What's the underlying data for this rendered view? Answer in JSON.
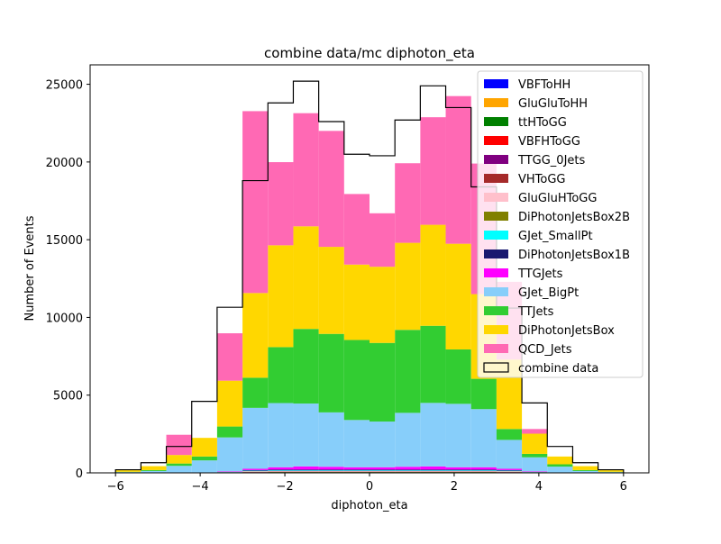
{
  "chart_data": {
    "type": "bar",
    "stacked": true,
    "title": "combine data/mc diphoton_eta",
    "xlabel": "diphoton_eta",
    "ylabel": "Number of Events",
    "xlim": [
      -6.6,
      6.6
    ],
    "ylim": [
      0,
      26250
    ],
    "xticks": [
      -6,
      -4,
      -2,
      0,
      2,
      4,
      6
    ],
    "yticks": [
      0,
      5000,
      10000,
      15000,
      20000,
      25000
    ],
    "grid": false,
    "legend_position": "upper-right",
    "bin_edges": [
      -6.0,
      -5.4,
      -4.8,
      -4.2,
      -3.6,
      -3.0,
      -2.4,
      -1.8,
      -1.2,
      -0.6,
      0.0,
      0.6,
      1.2,
      1.8,
      2.4,
      3.0,
      3.6,
      4.2,
      4.8,
      5.4,
      6.0
    ],
    "series": [
      {
        "name": "VBFToHH",
        "color": "#0000ff",
        "values": [
          0,
          0,
          0,
          0,
          0,
          0,
          0,
          0,
          0,
          0,
          0,
          0,
          0,
          0,
          0,
          0,
          0,
          0,
          0,
          0
        ]
      },
      {
        "name": "GluGluToHH",
        "color": "#ffa500",
        "values": [
          0,
          0,
          0,
          0,
          0,
          0,
          0,
          0,
          0,
          0,
          0,
          0,
          0,
          0,
          0,
          0,
          0,
          0,
          0,
          0
        ]
      },
      {
        "name": "ttHToGG",
        "color": "#008000",
        "values": [
          0,
          0,
          0,
          0,
          20,
          40,
          50,
          50,
          50,
          50,
          50,
          50,
          50,
          50,
          50,
          40,
          20,
          0,
          0,
          0
        ]
      },
      {
        "name": "VBFHToGG",
        "color": "#ff0000",
        "values": [
          0,
          0,
          0,
          0,
          5,
          10,
          10,
          10,
          10,
          10,
          10,
          10,
          10,
          10,
          10,
          10,
          5,
          0,
          0,
          0
        ]
      },
      {
        "name": "TTGG_0Jets",
        "color": "#800080",
        "values": [
          0,
          0,
          0,
          0,
          0,
          10,
          10,
          10,
          10,
          10,
          10,
          10,
          10,
          10,
          10,
          10,
          0,
          0,
          0,
          0
        ]
      },
      {
        "name": "VHToGG",
        "color": "#a52a2a",
        "values": [
          0,
          0,
          0,
          0,
          0,
          10,
          10,
          10,
          10,
          10,
          10,
          10,
          10,
          10,
          10,
          10,
          0,
          0,
          0,
          0
        ]
      },
      {
        "name": "GluGluHToGG",
        "color": "#ffc0cb",
        "values": [
          0,
          0,
          0,
          0,
          10,
          30,
          30,
          30,
          30,
          30,
          30,
          30,
          30,
          30,
          30,
          30,
          10,
          0,
          0,
          0
        ]
      },
      {
        "name": "DiPhotonJetsBox2B",
        "color": "#808000",
        "values": [
          0,
          0,
          0,
          0,
          5,
          10,
          10,
          10,
          10,
          10,
          10,
          10,
          10,
          10,
          10,
          10,
          5,
          0,
          0,
          0
        ]
      },
      {
        "name": "GJet_SmallPt",
        "color": "#00ffff",
        "values": [
          0,
          0,
          0,
          0,
          10,
          30,
          40,
          40,
          40,
          40,
          40,
          40,
          40,
          40,
          40,
          30,
          10,
          0,
          0,
          0
        ]
      },
      {
        "name": "DiPhotonJetsBox1B",
        "color": "#191970",
        "values": [
          0,
          0,
          0,
          0,
          20,
          40,
          50,
          50,
          50,
          50,
          50,
          50,
          50,
          50,
          50,
          40,
          20,
          0,
          0,
          0
        ]
      },
      {
        "name": "TTGJets",
        "color": "#ff00ff",
        "values": [
          0,
          0,
          0,
          0,
          30,
          80,
          150,
          200,
          180,
          150,
          150,
          180,
          200,
          150,
          150,
          80,
          30,
          0,
          0,
          0
        ]
      },
      {
        "name": "GJet_BigPt",
        "color": "#87cefa",
        "values": [
          50,
          120,
          450,
          800,
          2180,
          3920,
          4130,
          4050,
          3500,
          3040,
          2940,
          3470,
          4090,
          4080,
          3740,
          1860,
          900,
          400,
          120,
          50
        ]
      },
      {
        "name": "TTJets",
        "color": "#32cd32",
        "values": [
          20,
          60,
          150,
          250,
          700,
          1940,
          3600,
          4800,
          5050,
          5150,
          5060,
          5340,
          4960,
          3500,
          1950,
          700,
          220,
          150,
          60,
          20
        ]
      },
      {
        "name": "DiPhotonJetsBox",
        "color": "#ffd700",
        "values": [
          100,
          250,
          550,
          1200,
          2950,
          5450,
          6550,
          6600,
          5600,
          4850,
          4900,
          5600,
          6500,
          6800,
          5450,
          4470,
          1300,
          500,
          250,
          100
        ]
      },
      {
        "name": "QCD_Jets",
        "color": "#ff69b4",
        "values": [
          0,
          0,
          1300,
          0,
          3050,
          11700,
          5350,
          7280,
          7460,
          4540,
          3440,
          5120,
          6920,
          9500,
          8400,
          5000,
          300,
          0,
          0,
          0
        ]
      }
    ],
    "data_series": {
      "name": "combine data",
      "values": [
        200,
        650,
        1700,
        4600,
        10650,
        18800,
        23800,
        25200,
        22600,
        20500,
        20400,
        22700,
        24900,
        23500,
        18400,
        10600,
        4500,
        1700,
        650,
        200
      ]
    }
  }
}
